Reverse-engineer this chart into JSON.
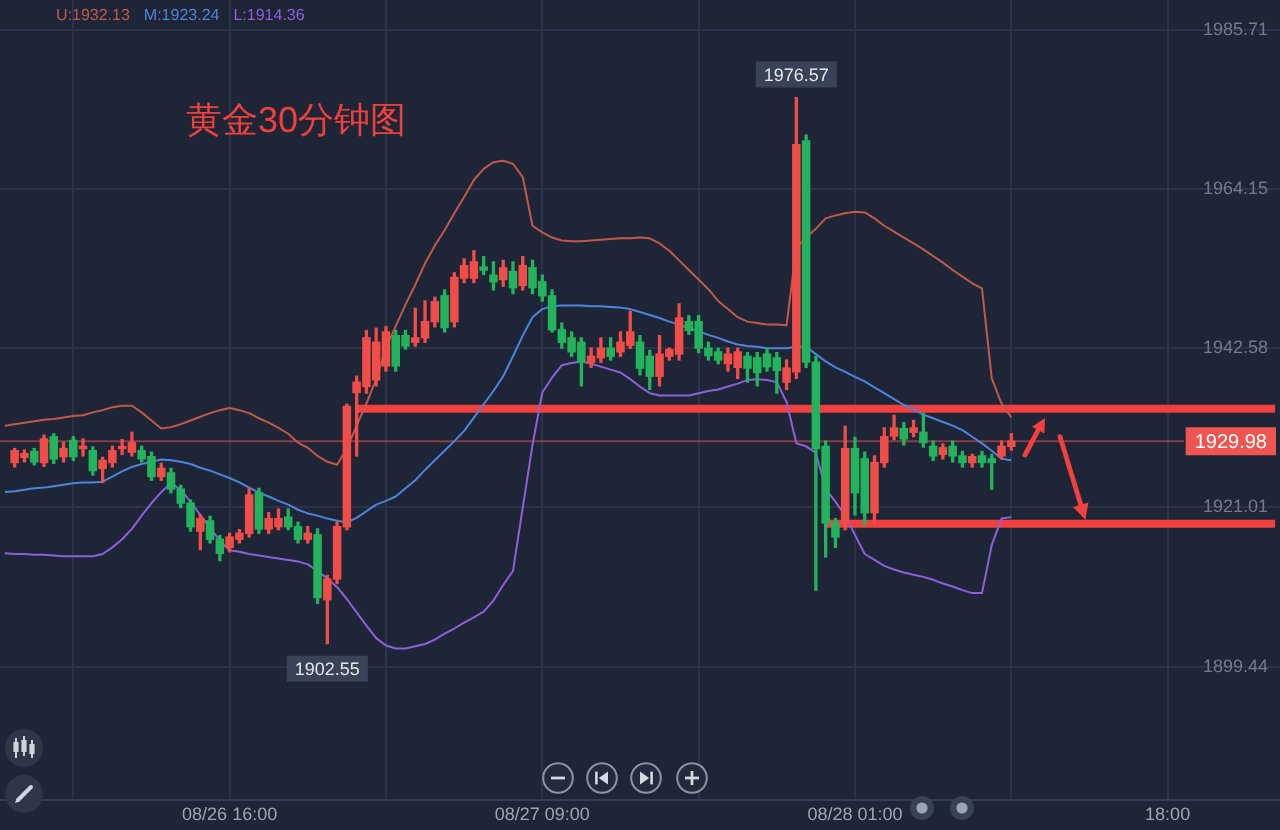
{
  "chart_data": {
    "type": "candlestick",
    "title": "黄金30分钟图",
    "categories": [
      null,
      null,
      null,
      null,
      null,
      null,
      null,
      null,
      null,
      null,
      null,
      null,
      null,
      null,
      null,
      null,
      null,
      null,
      null,
      null,
      null,
      null,
      null,
      "08/26 16:00",
      null,
      null,
      null,
      null,
      null,
      null,
      null,
      null,
      null,
      null,
      null,
      null,
      null,
      null,
      null,
      null,
      null,
      null,
      null,
      null,
      null,
      null,
      null,
      null,
      null,
      null,
      null,
      null,
      null,
      null,
      null,
      "08/27 09:00",
      null,
      null,
      null,
      null,
      null,
      null,
      null,
      null,
      null,
      null,
      null,
      null,
      null,
      null,
      null,
      null,
      null,
      null,
      null,
      null,
      null,
      null,
      null,
      null,
      null,
      null,
      null,
      null,
      null,
      null,
      null,
      "08/28 01:00",
      null,
      null,
      null,
      null,
      null,
      null,
      null,
      null,
      null,
      null,
      null,
      null,
      null,
      null,
      null,
      null,
      null,
      null,
      null,
      null,
      null,
      null,
      null,
      null,
      null,
      null,
      null,
      null,
      null,
      null,
      null,
      "18:00",
      null,
      null,
      null,
      null,
      null,
      null,
      null,
      null,
      null,
      null,
      null
    ],
    "ohlc": [
      null,
      [
        1927.1,
        1929.0,
        1926.5,
        1928.7
      ],
      [
        1927.8,
        1928.8,
        1927.2,
        1928.3
      ],
      [
        1928.6,
        1929.0,
        1926.8,
        1927.2
      ],
      [
        1927.1,
        1930.8,
        1926.6,
        1930.3
      ],
      [
        1930.6,
        1931.0,
        1927.0,
        1927.6
      ],
      [
        1927.9,
        1929.8,
        1927.2,
        1929.0
      ],
      [
        1930.1,
        1930.6,
        1927.4,
        1927.9
      ],
      [
        1929.0,
        1930.3,
        1928.0,
        1929.3
      ],
      [
        1928.7,
        1929.2,
        1925.4,
        1926.0
      ],
      [
        1926.3,
        1927.8,
        1924.4,
        1927.4
      ],
      [
        1927.1,
        1929.3,
        1926.5,
        1928.7
      ],
      [
        1929.0,
        1930.2,
        1928.2,
        1929.2
      ],
      [
        1928.5,
        1931.2,
        1928.0,
        1929.8
      ],
      [
        1928.7,
        1929.3,
        1927.2,
        1927.6
      ],
      [
        1927.9,
        1928.5,
        1924.7,
        1925.2
      ],
      [
        1925.2,
        1927.0,
        1924.7,
        1926.3
      ],
      [
        1925.7,
        1926.3,
        1923.0,
        1923.5
      ],
      [
        1923.5,
        1924.0,
        1921.0,
        1921.6
      ],
      [
        1921.6,
        1922.0,
        1917.8,
        1918.4
      ],
      [
        1917.8,
        1920.0,
        1915.3,
        1919.5
      ],
      [
        1919.2,
        1919.8,
        1916.2,
        1916.7
      ],
      [
        1916.7,
        1917.2,
        1913.8,
        1914.8
      ],
      [
        1915.6,
        1917.5,
        1915.0,
        1917.0
      ],
      [
        1916.7,
        1918.0,
        1916.2,
        1917.5
      ],
      [
        1917.5,
        1923.6,
        1917.0,
        1922.7
      ],
      [
        1923.0,
        1923.6,
        1917.5,
        1918.1
      ],
      [
        1918.1,
        1920.3,
        1917.5,
        1919.5
      ],
      [
        1918.4,
        1920.8,
        1918.0,
        1919.5
      ],
      [
        1919.7,
        1920.8,
        1918.0,
        1918.4
      ],
      [
        1918.4,
        1919.0,
        1916.2,
        1916.7
      ],
      [
        1916.7,
        1918.4,
        1916.2,
        1917.5
      ],
      [
        1917.3,
        1918.1,
        1908.0,
        1908.8
      ],
      [
        1908.5,
        1911.8,
        1902.55,
        1911.3
      ],
      [
        1911.3,
        1919.0,
        1910.7,
        1918.4
      ],
      [
        1918.4,
        1935.0,
        1918.0,
        1934.7
      ],
      [
        1936.6,
        1938.8,
        1928.0,
        1938.0
      ],
      [
        1937.4,
        1945.0,
        1936.5,
        1944.0
      ],
      [
        1938.3,
        1945.3,
        1937.5,
        1943.4
      ],
      [
        1940.2,
        1945.5,
        1939.5,
        1944.8
      ],
      [
        1944.3,
        1945.0,
        1939.5,
        1940.2
      ],
      [
        1944.3,
        1945.0,
        1942.5,
        1942.9
      ],
      [
        1943.4,
        1948.0,
        1942.9,
        1944.0
      ],
      [
        1944.0,
        1949.0,
        1943.4,
        1946.2
      ],
      [
        1946.2,
        1949.5,
        1945.5,
        1948.9
      ],
      [
        1949.7,
        1950.5,
        1944.8,
        1945.4
      ],
      [
        1946.2,
        1952.8,
        1945.5,
        1952.2
      ],
      [
        1952.1,
        1954.7,
        1951.5,
        1953.8
      ],
      [
        1952.1,
        1955.8,
        1951.5,
        1954.3
      ],
      [
        1953.6,
        1955.0,
        1952.6,
        1953.2
      ],
      [
        1952.5,
        1954.3,
        1950.5,
        1951.6
      ],
      [
        1951.9,
        1954.5,
        1951.0,
        1953.5
      ],
      [
        1953.0,
        1954.3,
        1950.0,
        1950.8
      ],
      [
        1951.1,
        1955.0,
        1950.5,
        1953.8
      ],
      [
        1953.5,
        1954.5,
        1950.0,
        1950.8
      ],
      [
        1951.6,
        1952.5,
        1949.0,
        1949.7
      ],
      [
        1949.7,
        1950.5,
        1944.8,
        1945.1
      ],
      [
        1945.1,
        1946.0,
        1942.6,
        1943.4
      ],
      [
        1944.0,
        1944.8,
        1941.5,
        1942.1
      ],
      [
        1943.4,
        1944.0,
        1937.5,
        1940.7
      ],
      [
        1940.7,
        1942.6,
        1940.0,
        1941.5
      ],
      [
        1941.3,
        1944.0,
        1940.7,
        1942.6
      ],
      [
        1942.6,
        1944.0,
        1941.0,
        1941.5
      ],
      [
        1942.1,
        1944.8,
        1941.5,
        1943.4
      ],
      [
        1943.0,
        1947.6,
        1942.6,
        1944.8
      ],
      [
        1943.4,
        1944.3,
        1939.0,
        1939.9
      ],
      [
        1941.5,
        1942.3,
        1937.0,
        1938.8
      ],
      [
        1938.8,
        1944.3,
        1937.5,
        1941.8
      ],
      [
        1941.5,
        1942.6,
        1941.0,
        1942.4
      ],
      [
        1941.8,
        1948.6,
        1941.0,
        1946.7
      ],
      [
        1946.2,
        1947.0,
        1944.5,
        1945.0
      ],
      [
        1946.2,
        1947.0,
        1942.0,
        1942.6
      ],
      [
        1942.6,
        1943.4,
        1941.0,
        1941.6
      ],
      [
        1942.1,
        1942.6,
        1940.5,
        1941.0
      ],
      [
        1940.5,
        1942.6,
        1939.5,
        1941.8
      ],
      [
        1940.0,
        1942.6,
        1938.5,
        1942.1
      ],
      [
        1941.5,
        1942.0,
        1938.0,
        1939.9
      ],
      [
        1941.3,
        1942.0,
        1937.5,
        1939.3
      ],
      [
        1941.8,
        1942.5,
        1939.5,
        1940.1
      ],
      [
        1941.3,
        1942.0,
        1936.5,
        1939.6
      ],
      [
        1938.0,
        1941.0,
        1937.0,
        1939.9
      ],
      [
        1939.4,
        1976.57,
        1938.5,
        1970.2
      ],
      [
        1970.7,
        1971.5,
        1940.0,
        1940.7
      ],
      [
        1940.7,
        1941.5,
        1909.8,
        1929.0
      ],
      [
        1929.3,
        1930.0,
        1914.3,
        1918.9
      ],
      [
        1918.9,
        1919.5,
        1915.6,
        1917.0
      ],
      [
        1918.9,
        1932.0,
        1918.0,
        1929.0
      ],
      [
        1929.0,
        1930.5,
        1920.0,
        1923.0
      ],
      [
        1927.6,
        1928.5,
        1918.6,
        1920.3
      ],
      [
        1920.3,
        1928.0,
        1918.9,
        1927.1
      ],
      [
        1927.1,
        1931.8,
        1926.5,
        1930.6
      ],
      [
        1930.7,
        1933.5,
        1930.2,
        1931.8
      ],
      [
        1931.7,
        1932.5,
        1929.5,
        1930.3
      ],
      [
        1931.2,
        1932.8,
        1930.6,
        1931.8
      ],
      [
        1931.2,
        1933.8,
        1929.2,
        1929.8
      ],
      [
        1929.3,
        1930.0,
        1927.4,
        1928.0
      ],
      [
        1928.2,
        1929.6,
        1927.6,
        1929.1
      ],
      [
        1929.3,
        1930.0,
        1927.2,
        1928.0
      ],
      [
        1928.0,
        1928.6,
        1926.5,
        1927.1
      ],
      [
        1927.1,
        1928.2,
        1926.5,
        1927.9
      ],
      [
        1928.0,
        1928.6,
        1926.5,
        1927.1
      ],
      [
        1927.6,
        1928.2,
        1923.5,
        1927.1
      ],
      [
        1928.0,
        1930.0,
        1927.6,
        1929.3
      ],
      [
        1929.3,
        1931.0,
        1928.8,
        1929.98
      ],
      null,
      null,
      null,
      null,
      null,
      null,
      null,
      null,
      null,
      null,
      null,
      null,
      null,
      null,
      null,
      null,
      null,
      null,
      null,
      null,
      null,
      null,
      null,
      null,
      null,
      null,
      null
    ],
    "series": [
      {
        "name": "U:1932.13",
        "type": "line",
        "color": "#c0584c",
        "values": [
          1932.1,
          1932.3,
          1932.5,
          1932.7,
          1932.9,
          1933.0,
          1933.2,
          1933.4,
          1933.5,
          1933.9,
          1934.2,
          1934.6,
          1934.8,
          1934.8,
          1933.9,
          1932.8,
          1931.7,
          1931.9,
          1932.3,
          1932.8,
          1933.3,
          1933.8,
          1934.2,
          1934.5,
          1934.2,
          1933.8,
          1933.1,
          1932.5,
          1931.8,
          1931.0,
          1929.8,
          1929.1,
          1928.0,
          1927.2,
          1926.8,
          1929.0,
          1932.1,
          1935.1,
          1938.4,
          1942.6,
          1945.6,
          1948.5,
          1951.2,
          1954.1,
          1956.5,
          1958.6,
          1960.9,
          1963.1,
          1965.4,
          1966.9,
          1967.8,
          1968.0,
          1967.6,
          1965.8,
          1959.2,
          1958.3,
          1957.6,
          1957.2,
          1957.1,
          1957.1,
          1957.2,
          1957.3,
          1957.4,
          1957.5,
          1957.5,
          1957.6,
          1957.5,
          1956.8,
          1955.8,
          1954.5,
          1953.2,
          1951.9,
          1950.6,
          1949.0,
          1947.9,
          1946.8,
          1946.2,
          1946.0,
          1945.8,
          1945.8,
          1945.7,
          1956.2,
          1957.6,
          1958.8,
          1960.2,
          1960.6,
          1960.9,
          1961.1,
          1961.0,
          1960.2,
          1959.2,
          1958.4,
          1957.6,
          1956.8,
          1956.0,
          1955.1,
          1954.2,
          1953.2,
          1952.3,
          1951.4,
          1950.7,
          1938.5,
          1935.1,
          1933.2,
          null,
          null,
          null,
          null,
          null,
          null,
          null,
          null,
          null,
          null,
          null,
          null,
          null,
          null,
          null,
          null,
          null,
          null,
          null,
          null,
          null,
          null,
          null,
          null,
          null,
          null,
          null
        ]
      },
      {
        "name": "M:1923.24",
        "type": "line",
        "color": "#4d84dc",
        "values": [
          1923.1,
          1923.2,
          1923.4,
          1923.6,
          1923.7,
          1923.9,
          1924.1,
          1924.3,
          1924.4,
          1924.4,
          1924.5,
          1925.2,
          1925.9,
          1926.5,
          1926.9,
          1927.2,
          1927.5,
          1927.4,
          1927.2,
          1926.9,
          1926.4,
          1926.0,
          1925.5,
          1925.0,
          1924.4,
          1923.7,
          1923.0,
          1922.5,
          1921.9,
          1921.4,
          1920.7,
          1920.2,
          1919.9,
          1919.5,
          1919.2,
          1919.0,
          1919.6,
          1920.5,
          1921.4,
          1921.9,
          1922.5,
          1923.6,
          1924.7,
          1926.1,
          1927.4,
          1928.7,
          1930.0,
          1931.4,
          1933.2,
          1935.0,
          1936.8,
          1938.8,
          1941.5,
          1944.3,
          1946.8,
          1947.9,
          1948.3,
          1948.4,
          1948.4,
          1948.4,
          1948.3,
          1948.3,
          1948.2,
          1948.1,
          1947.9,
          1947.5,
          1947.1,
          1946.7,
          1946.2,
          1945.8,
          1945.3,
          1944.9,
          1944.4,
          1944.0,
          1943.5,
          1943.1,
          1942.9,
          1942.8,
          1942.6,
          1942.6,
          1942.6,
          1942.8,
          1942.8,
          1941.8,
          1940.8,
          1940.0,
          1939.4,
          1938.7,
          1938.1,
          1937.3,
          1936.5,
          1935.7,
          1934.9,
          1934.3,
          1933.6,
          1933.1,
          1932.6,
          1932.1,
          1931.5,
          1930.6,
          1929.7,
          1928.7,
          1927.6,
          1927.4,
          null,
          null,
          null,
          null,
          null,
          null,
          null,
          null,
          null,
          null,
          null,
          null,
          null,
          null,
          null,
          null,
          null,
          null,
          null,
          null,
          null,
          null,
          null,
          null,
          null,
          null,
          null
        ]
      },
      {
        "name": "L:1914.36",
        "type": "line",
        "color": "#8d60da",
        "values": [
          1914.8,
          1914.7,
          1914.7,
          1914.6,
          1914.6,
          1914.5,
          1914.4,
          1914.4,
          1914.4,
          1914.4,
          1914.7,
          1915.6,
          1916.7,
          1918.1,
          1919.9,
          1921.6,
          1923.1,
          1924.3,
          1923.4,
          1921.8,
          1920.0,
          1918.2,
          1916.5,
          1915.2,
          1915.0,
          1914.7,
          1914.5,
          1914.3,
          1914.1,
          1913.9,
          1913.7,
          1913.3,
          1912.4,
          1911.4,
          1910.2,
          1908.6,
          1906.8,
          1905.0,
          1903.3,
          1902.3,
          1901.9,
          1901.9,
          1902.2,
          1902.5,
          1903.1,
          1903.9,
          1904.6,
          1905.4,
          1906.1,
          1906.9,
          1908.4,
          1910.5,
          1912.4,
          1921.0,
          1929.5,
          1936.6,
          1938.6,
          1940.3,
          1940.6,
          1940.8,
          1940.5,
          1940.1,
          1939.7,
          1939.3,
          1938.4,
          1937.4,
          1936.5,
          1936.2,
          1936.2,
          1936.2,
          1936.2,
          1936.5,
          1936.8,
          1937.0,
          1937.4,
          1937.8,
          1938.3,
          1938.4,
          1938.3,
          1938.0,
          1935.3,
          1929.7,
          1929.3,
          1928.4,
          1923.5,
          1921.8,
          1919.9,
          1917.3,
          1914.7,
          1913.9,
          1913.1,
          1912.6,
          1912.2,
          1911.9,
          1911.6,
          1911.2,
          1910.7,
          1910.3,
          1909.8,
          1909.4,
          1909.4,
          1915.9,
          1919.5,
          1919.7,
          null,
          null,
          null,
          null,
          null,
          null,
          null,
          null,
          null,
          null,
          null,
          null,
          null,
          null,
          null,
          null,
          null,
          null,
          null,
          null,
          null,
          null,
          null,
          null,
          null,
          null,
          null
        ]
      },
      {
        "type": "line",
        "color": "#f2403e",
        "values": [
          null,
          null,
          null,
          null,
          null,
          null,
          null,
          null,
          null,
          null,
          null,
          null,
          null,
          null,
          null,
          null,
          null,
          null,
          null,
          null,
          null,
          null,
          null,
          null,
          null,
          null,
          null,
          null,
          null,
          null,
          null,
          null,
          null,
          null,
          null,
          null,
          1934.4,
          1934.4,
          1934.4,
          1934.4,
          1934.4,
          1934.4,
          1934.4,
          1934.4,
          1934.4,
          1934.4,
          1934.4,
          1934.4,
          1934.4,
          1934.4,
          1934.4,
          1934.4,
          1934.4,
          1934.4,
          1934.4,
          1934.4,
          1934.4,
          1934.4,
          1934.4,
          1934.4,
          1934.4,
          1934.4,
          1934.4,
          1934.4,
          1934.4,
          1934.4,
          1934.4,
          1934.4,
          1934.4,
          1934.4,
          1934.4,
          1934.4,
          1934.4,
          1934.4,
          1934.4,
          1934.4,
          1934.4,
          1934.4,
          1934.4,
          1934.4,
          1934.4,
          1934.4,
          1934.4,
          1934.4,
          1934.4,
          1934.4,
          1934.4,
          1934.4,
          1934.4,
          1934.4,
          1934.4,
          1934.4,
          1934.4,
          1934.4,
          1934.4,
          1934.4,
          1934.4,
          1934.4,
          1934.4,
          1934.4,
          1934.4,
          1934.4,
          1934.4,
          1934.4,
          1934.4,
          1934.4,
          1934.4,
          1934.4,
          1934.4,
          1934.4,
          1934.4,
          1934.4,
          1934.4,
          1934.4,
          1934.4,
          1934.4,
          1934.4,
          1934.4,
          1934.4,
          1934.4,
          1934.4,
          1934.4,
          1934.4,
          1934.4,
          1934.4,
          1934.4,
          1934.4,
          1934.4,
          1934.4,
          1934.4,
          1934.4
        ]
      },
      {
        "type": "line",
        "color": "#f2403e",
        "values": [
          null,
          null,
          null,
          null,
          null,
          null,
          null,
          null,
          null,
          null,
          null,
          null,
          null,
          null,
          null,
          null,
          null,
          null,
          null,
          null,
          null,
          null,
          null,
          null,
          null,
          null,
          null,
          null,
          null,
          null,
          null,
          null,
          null,
          null,
          null,
          null,
          null,
          null,
          null,
          null,
          null,
          null,
          null,
          null,
          null,
          null,
          null,
          null,
          null,
          null,
          null,
          null,
          null,
          null,
          null,
          null,
          null,
          null,
          null,
          null,
          null,
          null,
          null,
          null,
          null,
          null,
          null,
          null,
          null,
          null,
          null,
          null,
          null,
          null,
          null,
          null,
          null,
          null,
          null,
          null,
          null,
          null,
          null,
          null,
          1918.8,
          1918.8,
          1918.8,
          1918.8,
          1918.8,
          1918.8,
          1918.8,
          1918.8,
          1918.8,
          1918.8,
          1918.8,
          1918.8,
          1918.8,
          1918.8,
          1918.8,
          1918.8,
          1918.8,
          1918.8,
          1918.8,
          1918.8,
          1918.8,
          1918.8,
          1918.8,
          1918.8,
          1918.8,
          1918.8,
          1918.8,
          1918.8,
          1918.8,
          1918.8,
          1918.8,
          1918.8,
          1918.8,
          1918.8,
          1918.8,
          1918.8,
          1918.8,
          1918.8,
          1918.8,
          1918.8,
          1918.8,
          1918.8,
          1918.8,
          1918.8,
          1918.8,
          1918.8,
          1918.8
        ]
      }
    ],
    "ylim": [
      1881.3,
      1989.8
    ],
    "yticks": [
      1899.44,
      1921.01,
      1942.58,
      1964.15,
      1985.71
    ],
    "ref_lines": [
      {
        "axis": "y",
        "value": 1929.98,
        "label": "1929.98",
        "color": "#ee5450"
      }
    ],
    "annotations": [
      {
        "text": "1976.57",
        "y": 1976.57
      },
      {
        "text": "1902.55",
        "y": 1902.55
      }
    ],
    "legend": "top left",
    "grid": true
  }
}
